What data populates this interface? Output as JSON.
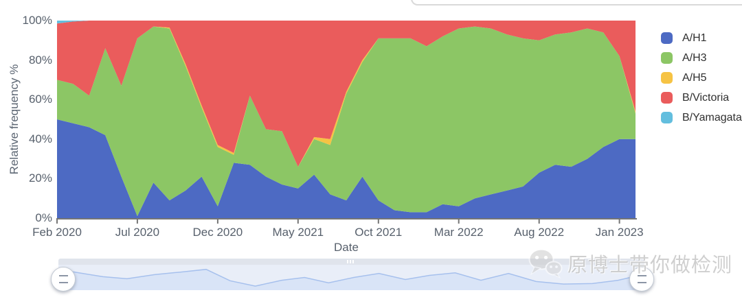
{
  "axes": {
    "y_title": "Relative frequency %",
    "x_title": "Date",
    "y_tick_labels": [
      "100%",
      "80%",
      "60%",
      "40%",
      "20%",
      "0%"
    ],
    "y_tick_values": [
      100,
      80,
      60,
      40,
      20,
      0
    ],
    "x_tick_labels": [
      "Feb 2020",
      "Jul 2020",
      "Dec 2020",
      "May 2021",
      "Oct 2021",
      "Mar 2022",
      "Aug 2022",
      "Jan 2023"
    ],
    "x_tick_indices": [
      0,
      5,
      10,
      15,
      20,
      25,
      30,
      35
    ]
  },
  "legend": {
    "position": "right",
    "items": [
      {
        "label": "A/H1",
        "color": "#4d6ac3"
      },
      {
        "label": "A/H3",
        "color": "#8cc665"
      },
      {
        "label": "A/H5",
        "color": "#f6c344"
      },
      {
        "label": "B/Victoria",
        "color": "#ea5c5c"
      },
      {
        "label": "B/Yamagata",
        "color": "#63bede"
      }
    ]
  },
  "chart_data": {
    "type": "area",
    "stacked": true,
    "units": "percent",
    "title": "",
    "xlabel": "Date",
    "ylabel": "Relative frequency %",
    "ylim": [
      0,
      100
    ],
    "grid": false,
    "legend_position": "right",
    "x": [
      "2020-02",
      "2020-03",
      "2020-04",
      "2020-05",
      "2020-06",
      "2020-07",
      "2020-08",
      "2020-09",
      "2020-10",
      "2020-11",
      "2020-12",
      "2021-01",
      "2021-02",
      "2021-03",
      "2021-04",
      "2021-05",
      "2021-06",
      "2021-07",
      "2021-08",
      "2021-09",
      "2021-10",
      "2021-11",
      "2021-12",
      "2022-01",
      "2022-02",
      "2022-03",
      "2022-04",
      "2022-05",
      "2022-06",
      "2022-07",
      "2022-08",
      "2022-09",
      "2022-10",
      "2022-11",
      "2022-12",
      "2023-01",
      "2023-02"
    ],
    "series": [
      {
        "name": "A/H1",
        "color": "#4d6ac3",
        "values": [
          50,
          48,
          46,
          42,
          21,
          1,
          18,
          9,
          14,
          21,
          6,
          28,
          27,
          21,
          17,
          15,
          22,
          12,
          9,
          21,
          9,
          4,
          3,
          3,
          7,
          6,
          10,
          12,
          14,
          16,
          23,
          27,
          26,
          30,
          36,
          40,
          40
        ]
      },
      {
        "name": "A/H3",
        "color": "#8cc665",
        "values": [
          20,
          20,
          16,
          44,
          46,
          90,
          79,
          87,
          63,
          35,
          30,
          4,
          35,
          24,
          27,
          11,
          18,
          25,
          54,
          58,
          82,
          87,
          88,
          84,
          85,
          90,
          87,
          84,
          79,
          75,
          67,
          66,
          68,
          66,
          58,
          42,
          13
        ]
      },
      {
        "name": "A/H5",
        "color": "#f6c344",
        "values": [
          0,
          0,
          0,
          0,
          0,
          0,
          0,
          0.5,
          1,
          1,
          1,
          1,
          0,
          0,
          0,
          0,
          1,
          3,
          1,
          1,
          0,
          0,
          0,
          0,
          0,
          0,
          0,
          0,
          0,
          0,
          0,
          0,
          0,
          0,
          0,
          0,
          1
        ]
      },
      {
        "name": "B/Victoria",
        "color": "#ea5c5c",
        "values": [
          28.5,
          31.5,
          38,
          14,
          33,
          9,
          3,
          3.5,
          22,
          43,
          63,
          67,
          38,
          55,
          56,
          74,
          59,
          60,
          36,
          20,
          9,
          9,
          9,
          13,
          8,
          4,
          3,
          4,
          7,
          9,
          10,
          7,
          6,
          4,
          6,
          18,
          46
        ]
      },
      {
        "name": "B/Yamagata",
        "color": "#63bede",
        "values": [
          1.5,
          0.5,
          0,
          0,
          0,
          0,
          0,
          0,
          0,
          0,
          0,
          0,
          0,
          0,
          0,
          0,
          0,
          0,
          0,
          0,
          0,
          0,
          0,
          0,
          0,
          0,
          0,
          0,
          0,
          0,
          0,
          0,
          0,
          0,
          0,
          0,
          0
        ]
      }
    ]
  },
  "minimap": {
    "area_color": "#d9e4f7",
    "line_color": "#a6c0ed",
    "points": [
      [
        0,
        0.18
      ],
      [
        0.035,
        0.32
      ],
      [
        0.076,
        0.47
      ],
      [
        0.117,
        0.55
      ],
      [
        0.164,
        0.39
      ],
      [
        0.208,
        0.29
      ],
      [
        0.252,
        0.18
      ],
      [
        0.293,
        0.63
      ],
      [
        0.336,
        0.84
      ],
      [
        0.381,
        0.61
      ],
      [
        0.42,
        0.5
      ],
      [
        0.461,
        0.71
      ],
      [
        0.504,
        0.5
      ],
      [
        0.547,
        0.34
      ],
      [
        0.592,
        0.58
      ],
      [
        0.633,
        0.42
      ],
      [
        0.677,
        0.32
      ],
      [
        0.721,
        0.61
      ],
      [
        0.768,
        0.34
      ],
      [
        0.815,
        0.66
      ],
      [
        0.862,
        0.76
      ],
      [
        0.911,
        0.74
      ],
      [
        0.955,
        0.61
      ],
      [
        1,
        0.37
      ]
    ]
  },
  "watermark": {
    "text": "原博士带你做检测",
    "icon": "wechat"
  },
  "colors": {
    "axis_text": "#57606c",
    "axis_line": "#757575",
    "rail": "#e0e4ec",
    "band": "#e9eef8",
    "panel_border": "#d9d9d9"
  }
}
